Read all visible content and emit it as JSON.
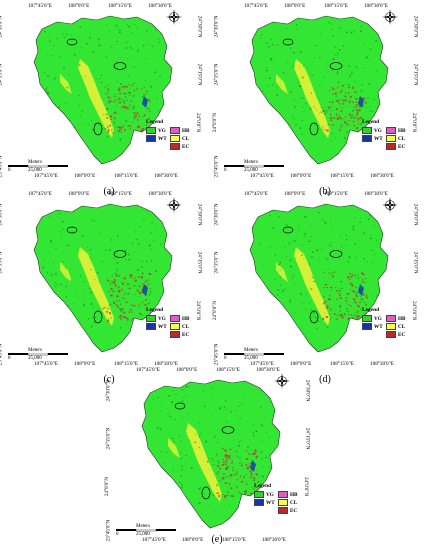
{
  "panels": [
    {
      "id": "a",
      "caption": "(a)"
    },
    {
      "id": "b",
      "caption": "(b)"
    },
    {
      "id": "c",
      "caption": "(c)"
    },
    {
      "id": "d",
      "caption": "(d)"
    },
    {
      "id": "e",
      "caption": "(e)"
    }
  ],
  "axes": {
    "lon_top": [
      "107°45'0\"E",
      "108°0'0\"E",
      "108°15'0\"E",
      "108°30'0\"E"
    ],
    "lon_bottom": [
      "107°45'0\"E",
      "108°0'0\"E",
      "108°15'0\"E",
      "108°30'0\"E"
    ],
    "lat_left": [
      "24°30'0\"N",
      "24°15'0\"N",
      "24°0'0\"N",
      "23°45'0\"N"
    ],
    "lat_right": [
      "24°30'0\"N",
      "24°15'0\"N",
      "24°0'0\"N"
    ]
  },
  "legend": {
    "title": "Legend",
    "items": [
      {
        "code": "VG",
        "color": "#22dd22"
      },
      {
        "code": "HB",
        "color": "#ee55cc"
      },
      {
        "code": "WT",
        "color": "#1133bb"
      },
      {
        "code": "CL",
        "color": "#ffff33"
      },
      {
        "code": "EC",
        "color": "#cc2222"
      }
    ]
  },
  "scale": {
    "unit": "Meters",
    "zero": "0",
    "value": "25,000"
  }
}
